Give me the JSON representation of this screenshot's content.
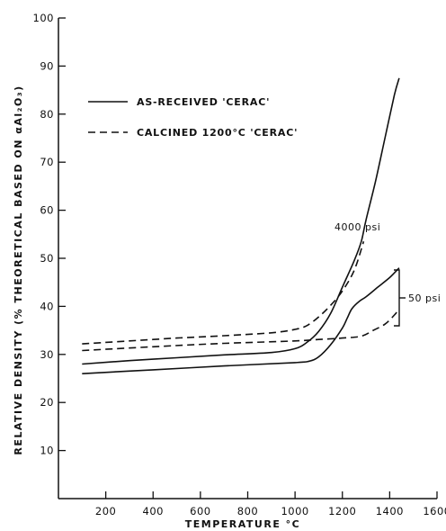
{
  "chart_data": {
    "type": "line",
    "xlabel": "TEMPERATURE °C",
    "ylabel": "RELATIVE DENSITY (% THEORETICAL BASED ON αAl₂O₃)",
    "xlim": [
      0,
      1600
    ],
    "ylim": [
      0,
      100
    ],
    "x_ticks": [
      200,
      400,
      600,
      800,
      1000,
      1200,
      1400,
      1600
    ],
    "y_ticks": [
      10,
      20,
      30,
      40,
      50,
      60,
      70,
      80,
      90,
      100
    ],
    "grid": false,
    "legend_position": "top-left",
    "legend": [
      {
        "label": "AS-RECEIVED 'CERAC'",
        "style": "solid"
      },
      {
        "label": "CALCINED 1200°C 'CERAC'",
        "style": "dashed"
      }
    ],
    "annotations": {
      "high_pressure": "4000 psi",
      "low_pressure": "50 psi"
    },
    "series": [
      {
        "style": "solid",
        "points": [
          [
            100,
            28
          ],
          [
            300,
            28.7
          ],
          [
            500,
            29.3
          ],
          [
            700,
            29.9
          ],
          [
            900,
            30.4
          ],
          [
            1000,
            31.2
          ],
          [
            1050,
            32.5
          ],
          [
            1100,
            34.8
          ],
          [
            1150,
            38.5
          ],
          [
            1200,
            44
          ],
          [
            1250,
            49.5
          ],
          [
            1280,
            53.5
          ],
          [
            1300,
            58
          ],
          [
            1340,
            66
          ],
          [
            1380,
            75
          ],
          [
            1420,
            84
          ],
          [
            1440,
            87.5
          ]
        ]
      },
      {
        "style": "solid",
        "points": [
          [
            100,
            26
          ],
          [
            400,
            26.8
          ],
          [
            700,
            27.6
          ],
          [
            1000,
            28.3
          ],
          [
            1060,
            28.6
          ],
          [
            1100,
            29.5
          ],
          [
            1150,
            32
          ],
          [
            1200,
            35.5
          ],
          [
            1220,
            37.5
          ],
          [
            1240,
            39.5
          ],
          [
            1270,
            41
          ],
          [
            1300,
            42
          ],
          [
            1350,
            44
          ],
          [
            1400,
            46
          ],
          [
            1440,
            48
          ]
        ]
      },
      {
        "style": "dashed",
        "points": [
          [
            100,
            32.2
          ],
          [
            300,
            32.8
          ],
          [
            500,
            33.4
          ],
          [
            700,
            33.9
          ],
          [
            900,
            34.5
          ],
          [
            1000,
            35.2
          ],
          [
            1050,
            36
          ],
          [
            1100,
            37.8
          ],
          [
            1150,
            40.2
          ],
          [
            1200,
            43.2
          ],
          [
            1250,
            47.5
          ],
          [
            1290,
            53.5
          ]
        ]
      },
      {
        "style": "dashed",
        "points": [
          [
            100,
            30.8
          ],
          [
            400,
            31.6
          ],
          [
            700,
            32.3
          ],
          [
            1000,
            32.8
          ],
          [
            1100,
            33.1
          ],
          [
            1200,
            33.4
          ],
          [
            1280,
            33.8
          ],
          [
            1330,
            35
          ],
          [
            1380,
            36.3
          ],
          [
            1420,
            38.2
          ],
          [
            1440,
            39.5
          ]
        ]
      }
    ]
  }
}
